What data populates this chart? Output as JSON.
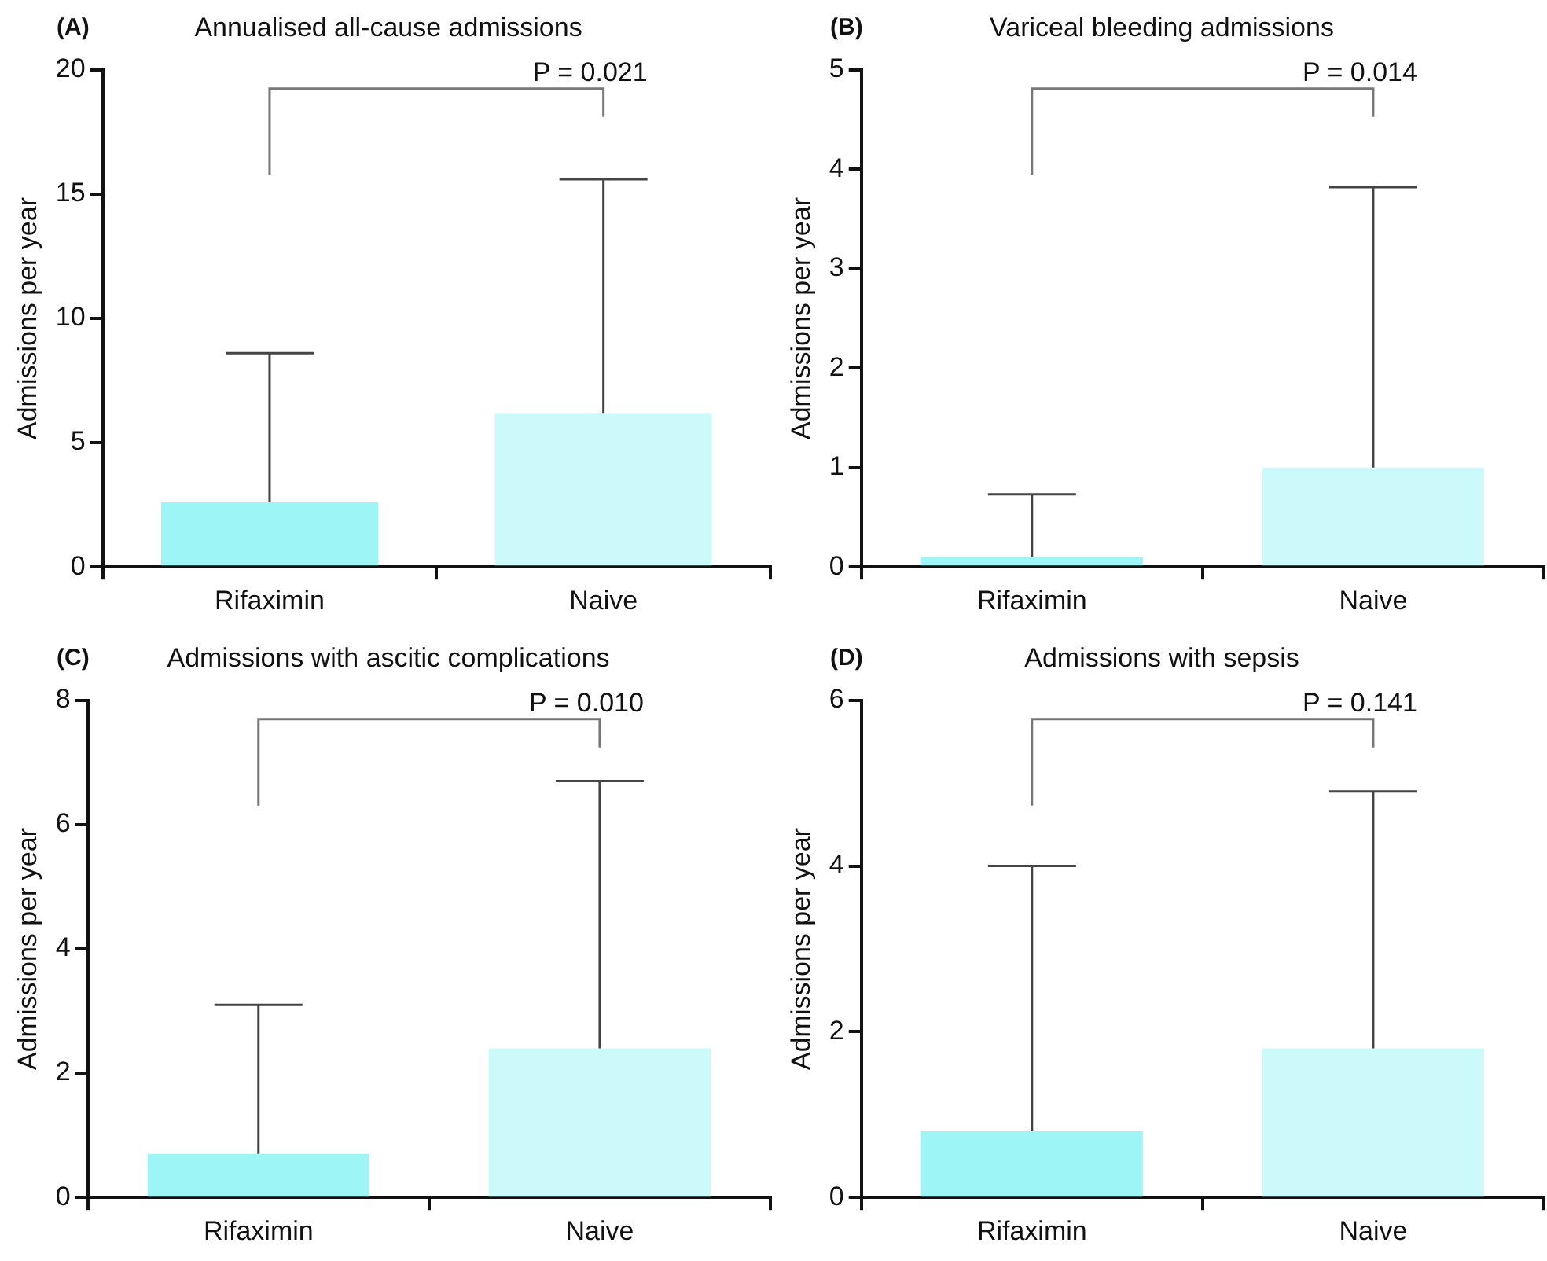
{
  "chart_data": [
    {
      "type": "bar",
      "title": "Annualised all-cause admissions",
      "ylabel": "Admissions per year",
      "categories": [
        "Rifaximin",
        "Naive"
      ],
      "values": [
        2.6,
        6.2
      ],
      "colors": [
        "#9ef5f5",
        "#ccfafa"
      ],
      "errors": [
        [
          2.6,
          8.6
        ],
        [
          6.2,
          15.6
        ]
      ],
      "ylim": [
        0,
        20
      ],
      "yticks": [
        0,
        5,
        10,
        15,
        20
      ],
      "annotations": [
        "(A)",
        "P = 0.021"
      ]
    },
    {
      "type": "bar",
      "title": "Variceal bleeding admissions",
      "ylabel": "Admissions per year",
      "categories": [
        "Rifaximin",
        "Naive"
      ],
      "values": [
        0.1,
        1.0
      ],
      "colors": [
        "#9ef5f5",
        "#ccfafa"
      ],
      "errors": [
        [
          0.1,
          0.73
        ],
        [
          1.0,
          3.82
        ]
      ],
      "ylim": [
        0,
        5
      ],
      "yticks": [
        0,
        1,
        2,
        3,
        4,
        5
      ],
      "annotations": [
        "(B)",
        "P = 0.014"
      ]
    },
    {
      "type": "bar",
      "title": "Admissions with ascitic complications",
      "ylabel": "Admissions per year",
      "categories": [
        "Rifaximin",
        "Naive"
      ],
      "values": [
        0.7,
        2.4
      ],
      "colors": [
        "#9ef5f5",
        "#ccfafa"
      ],
      "errors": [
        [
          0.7,
          3.1
        ],
        [
          2.4,
          6.7
        ]
      ],
      "ylim": [
        0,
        8
      ],
      "yticks": [
        0,
        2,
        4,
        6,
        8
      ],
      "annotations": [
        "(C)",
        "P = 0.010"
      ]
    },
    {
      "type": "bar",
      "title": "Admissions with sepsis",
      "ylabel": "Admissions per year",
      "categories": [
        "Rifaximin",
        "Naive"
      ],
      "values": [
        0.8,
        1.8
      ],
      "colors": [
        "#9ef5f5",
        "#ccfafa"
      ],
      "errors": [
        [
          0.8,
          4.0
        ],
        [
          1.8,
          4.9
        ]
      ],
      "ylim": [
        0,
        6
      ],
      "yticks": [
        0,
        2,
        4,
        6
      ],
      "annotations": [
        "(D)",
        "P = 0.141"
      ]
    }
  ]
}
